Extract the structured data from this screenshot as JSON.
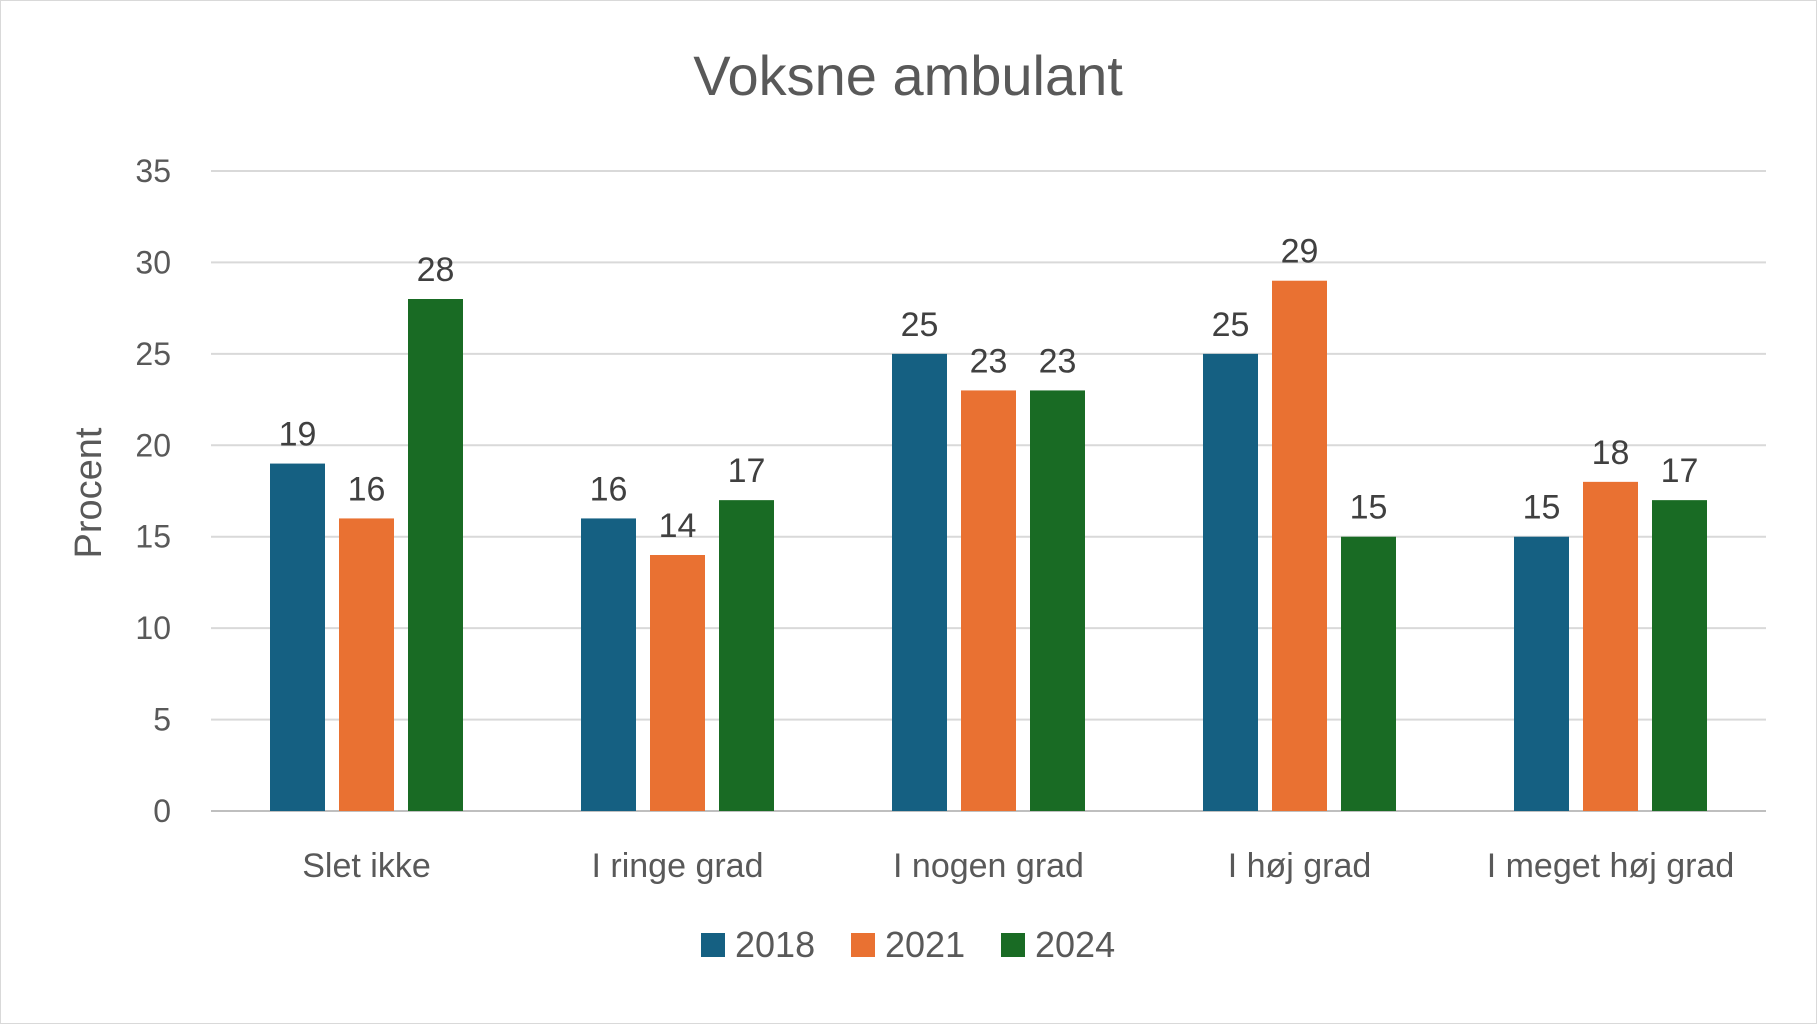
{
  "chart_data": {
    "type": "bar",
    "title": "Voksne ambulant",
    "xlabel": "",
    "ylabel": "Procent",
    "ylim": [
      0,
      35
    ],
    "yticks": [
      0,
      5,
      10,
      15,
      20,
      25,
      30,
      35
    ],
    "grid": true,
    "legend_position": "bottom",
    "categories": [
      "Slet ikke",
      "I ringe grad",
      "I nogen grad",
      "I høj grad",
      "I meget høj grad"
    ],
    "series": [
      {
        "name": "2018",
        "color": "#156082",
        "values": [
          19,
          16,
          25,
          25,
          15
        ]
      },
      {
        "name": "2021",
        "color": "#E97132",
        "values": [
          16,
          14,
          23,
          29,
          18
        ]
      },
      {
        "name": "2024",
        "color": "#196B24",
        "values": [
          28,
          17,
          23,
          15,
          17
        ]
      }
    ]
  }
}
